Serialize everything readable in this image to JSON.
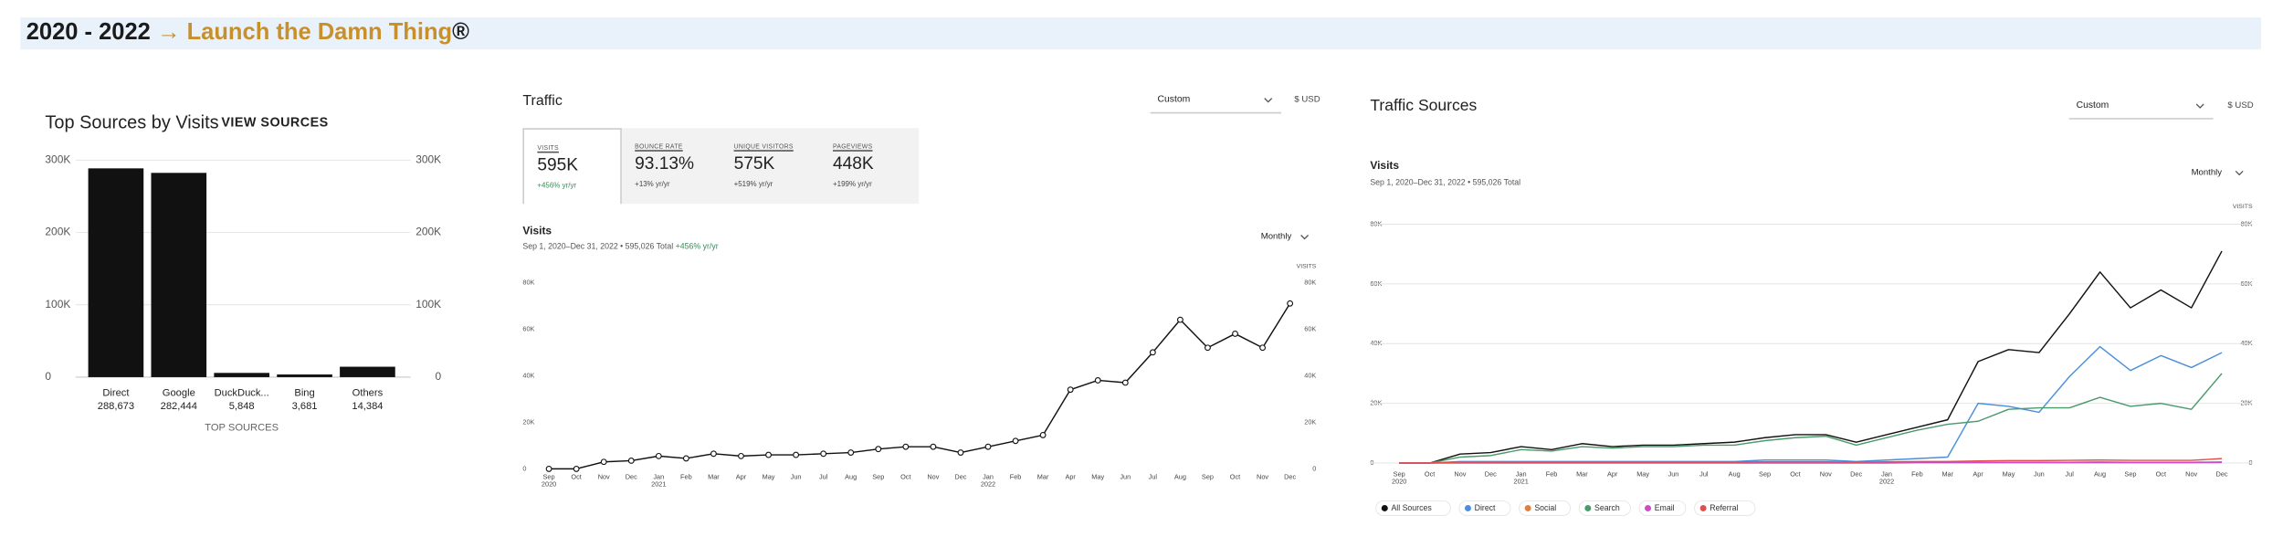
{
  "header": {
    "period": "2020 - 2022",
    "arrow": "→",
    "name": "Launch the Damn Thing",
    "mark": "®"
  },
  "top_sources": {
    "title": "Top Sources by Visits",
    "link": "VIEW SOURCES"
  },
  "traffic": {
    "title": "Traffic",
    "range_select": "Custom",
    "currency": "$ USD",
    "stats": [
      {
        "label": "VISITS",
        "value": "595K",
        "change": "+456% yr/yr"
      },
      {
        "label": "BOUNCE RATE",
        "value": "93.13%",
        "change": "+13% yr/yr"
      },
      {
        "label": "UNIQUE VISITORS",
        "value": "575K",
        "change": "+519% yr/yr"
      },
      {
        "label": "PAGEVIEWS",
        "value": "448K",
        "change": "+199% yr/yr"
      }
    ],
    "metric": "Visits",
    "subtitle": "Sep 1, 2020–Dec 31, 2022 • 595,026 Total",
    "change": "+456% yr/yr",
    "interval": "Monthly"
  },
  "traffic_sources": {
    "title": "Traffic Sources",
    "range_select": "Custom",
    "currency": "$ USD",
    "metric": "Visits",
    "subtitle": "Sep 1, 2020–Dec 31, 2022 • 595,026 Total",
    "interval": "Monthly"
  },
  "chart_data": [
    {
      "type": "bar",
      "categories": [
        "Direct",
        "Google",
        "DuckDuck...",
        "Bing",
        "Others"
      ],
      "values": [
        288673,
        282444,
        5848,
        3681,
        14384
      ],
      "value_labels": [
        "288,673",
        "282,444",
        "5,848",
        "3,681",
        "14,384"
      ],
      "color": "#111111",
      "x_label": "TOP SOURCES",
      "ylim": [
        0,
        300000
      ],
      "yticks": [
        0,
        {
          "value": 100000,
          "label": "100K"
        },
        {
          "value": 200000,
          "label": "200K"
        },
        {
          "value": 300000,
          "label": "300K"
        }
      ],
      "grid": true
    },
    {
      "type": "line",
      "y_axis_label": "VISITS",
      "categories": [
        "Sep\n2020",
        "Oct",
        "Nov",
        "Dec",
        "Jan\n2021",
        "Feb",
        "Mar",
        "Apr",
        "May",
        "Jun",
        "Jul",
        "Aug",
        "Sep",
        "Oct",
        "Nov",
        "Dec",
        "Jan\n2022",
        "Feb",
        "Mar",
        "Apr",
        "May",
        "Jun",
        "Jul",
        "Aug",
        "Sep",
        "Oct",
        "Nov",
        "Dec"
      ],
      "values": [
        0,
        0,
        3000,
        3500,
        5500,
        4500,
        6500,
        5500,
        6000,
        6000,
        6500,
        7000,
        8500,
        9500,
        9500,
        7000,
        9500,
        12000,
        14500,
        34000,
        38000,
        37000,
        50000,
        64000,
        52000,
        58000,
        52000,
        71000
      ],
      "color": "#111111",
      "markers": true,
      "ylim": [
        0,
        80000
      ],
      "yticks": [
        0,
        {
          "value": 20000,
          "label": "20K"
        },
        {
          "value": 40000,
          "label": "40K"
        },
        {
          "value": 60000,
          "label": "60K"
        },
        {
          "value": 80000,
          "label": "80K"
        }
      ],
      "grid": false
    },
    {
      "type": "line",
      "y_axis_label": "VISITS",
      "categories": [
        "Sep\n2020",
        "Oct",
        "Nov",
        "Dec",
        "Jan\n2021",
        "Feb",
        "Mar",
        "Apr",
        "May",
        "Jun",
        "Jul",
        "Aug",
        "Sep",
        "Oct",
        "Nov",
        "Dec",
        "Jan\n2022",
        "Feb",
        "Mar",
        "Apr",
        "May",
        "Jun",
        "Jul",
        "Aug",
        "Sep",
        "Oct",
        "Nov",
        "Dec"
      ],
      "series": [
        {
          "name": "All Sources",
          "color": "#111111",
          "values": [
            0,
            0,
            3000,
            3500,
            5500,
            4500,
            6500,
            5500,
            6000,
            6000,
            6500,
            7000,
            8500,
            9500,
            9500,
            7000,
            9500,
            12000,
            14500,
            34000,
            38000,
            37000,
            50000,
            64000,
            52000,
            58000,
            52000,
            71000
          ]
        },
        {
          "name": "Direct",
          "color": "#4a8fdc",
          "values": [
            0,
            0,
            500,
            500,
            500,
            500,
            500,
            500,
            500,
            500,
            500,
            500,
            1000,
            1000,
            1000,
            500,
            1000,
            1500,
            2000,
            20000,
            19000,
            17000,
            29000,
            39000,
            31000,
            36000,
            32000,
            37000
          ]
        },
        {
          "name": "Social",
          "color": "#e08040",
          "values": [
            0,
            0,
            200,
            200,
            200,
            200,
            200,
            200,
            200,
            200,
            200,
            200,
            200,
            200,
            200,
            200,
            200,
            300,
            300,
            300,
            300,
            300,
            300,
            400,
            300,
            300,
            300,
            400
          ]
        },
        {
          "name": "Search",
          "color": "#4b9a6a",
          "values": [
            0,
            0,
            2000,
            2500,
            4500,
            4000,
            5500,
            5000,
            5500,
            5500,
            6000,
            6000,
            7500,
            8500,
            9000,
            6000,
            8500,
            11000,
            13000,
            14000,
            18000,
            18500,
            18500,
            22000,
            19000,
            20000,
            18000,
            30000
          ]
        },
        {
          "name": "Email",
          "color": "#c84fc8",
          "values": [
            0,
            0,
            0,
            0,
            0,
            0,
            0,
            0,
            0,
            0,
            0,
            0,
            0,
            0,
            0,
            0,
            0,
            100,
            100,
            100,
            100,
            100,
            100,
            100,
            100,
            100,
            100,
            200
          ]
        },
        {
          "name": "Referral",
          "color": "#e05050",
          "values": [
            0,
            0,
            300,
            300,
            300,
            300,
            300,
            300,
            300,
            300,
            300,
            300,
            400,
            400,
            400,
            300,
            400,
            500,
            500,
            700,
            800,
            800,
            900,
            1000,
            900,
            900,
            900,
            1500
          ]
        }
      ],
      "markers": false,
      "legend": "bottom-left",
      "ylim": [
        0,
        80000
      ],
      "yticks": [
        0,
        {
          "value": 20000,
          "label": "20K"
        },
        {
          "value": 40000,
          "label": "40K"
        },
        {
          "value": 60000,
          "label": "60K"
        },
        {
          "value": 80000,
          "label": "80K"
        }
      ],
      "grid": true
    }
  ]
}
